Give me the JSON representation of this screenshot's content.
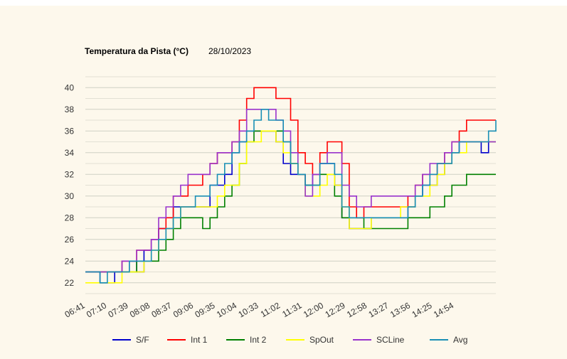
{
  "chart_data": {
    "type": "line",
    "title": "Temperatura da Pista (°C)",
    "subtitle": "28/10/2023",
    "xlabel": "",
    "ylabel": "",
    "ylim": [
      21,
      41
    ],
    "ytick_labels": [
      "22",
      "24",
      "26",
      "28",
      "30",
      "32",
      "34",
      "36",
      "38",
      "40"
    ],
    "x_tick_labels": [
      "06:41",
      "07:10",
      "07:39",
      "08:08",
      "08:37",
      "09:06",
      "09:35",
      "10:04",
      "10:33",
      "11:02",
      "11:31",
      "12:00",
      "12:29",
      "12:58",
      "13:27",
      "13:56",
      "14:25",
      "14:54"
    ],
    "grid": true,
    "legend_position": "bottom",
    "x_minutes": [
      0,
      10,
      20,
      30,
      40,
      50,
      60,
      70,
      80,
      90,
      100,
      110,
      120,
      130,
      140,
      150,
      160,
      170,
      180,
      190,
      200,
      210,
      220,
      230,
      240,
      250,
      260,
      270,
      280,
      290,
      300,
      310,
      320,
      330,
      340,
      350,
      360,
      370,
      380,
      390,
      400,
      410,
      420,
      430,
      440,
      450,
      460,
      470,
      480,
      490,
      500,
      510,
      520,
      530,
      540,
      550,
      560
    ],
    "series": [
      {
        "name": "S/F",
        "color": "#0000cc",
        "values": [
          23,
          23,
          22,
          22,
          23,
          23,
          24,
          23,
          25,
          26,
          27,
          27,
          29,
          29,
          29,
          29,
          29,
          31,
          31,
          32,
          34,
          35,
          36,
          36,
          36,
          36,
          35,
          33,
          32,
          32,
          31,
          32,
          33,
          33,
          31,
          28,
          27,
          27,
          27,
          28,
          28,
          28,
          28,
          28,
          29,
          30,
          31,
          31,
          32,
          33,
          34,
          35,
          35,
          35,
          34,
          35,
          35
        ]
      },
      {
        "name": "Int 1",
        "color": "#ff0000",
        "values": [
          23,
          23,
          23,
          23,
          23,
          24,
          24,
          25,
          25,
          26,
          27,
          28,
          30,
          30,
          31,
          31,
          32,
          33,
          34,
          34,
          35,
          37,
          39,
          40,
          40,
          40,
          39,
          39,
          37,
          34,
          33,
          32,
          34,
          35,
          35,
          33,
          29,
          28,
          29,
          29,
          29,
          29,
          29,
          29,
          30,
          31,
          32,
          32,
          33,
          34,
          35,
          36,
          37,
          37,
          37,
          37,
          37
        ]
      },
      {
        "name": "Int 2",
        "color": "#008000",
        "values": [
          23,
          23,
          23,
          23,
          23,
          23,
          23,
          24,
          24,
          24,
          25,
          26,
          27,
          28,
          28,
          28,
          27,
          28,
          29,
          30,
          31,
          33,
          35,
          36,
          36,
          36,
          36,
          35,
          33,
          32,
          31,
          31,
          32,
          32,
          30,
          28,
          28,
          28,
          27,
          27,
          27,
          27,
          27,
          27,
          28,
          28,
          28,
          29,
          29,
          30,
          31,
          31,
          32,
          32,
          32,
          32,
          32
        ]
      },
      {
        "name": "SpOut",
        "color": "#ffff00",
        "values": [
          22,
          22,
          22,
          22,
          22,
          23,
          23,
          23,
          24,
          25,
          26,
          27,
          28,
          29,
          29,
          29,
          29,
          29,
          30,
          31,
          31,
          33,
          35,
          35,
          36,
          36,
          35,
          34,
          33,
          32,
          30,
          30,
          31,
          32,
          31,
          29,
          27,
          27,
          27,
          28,
          28,
          28,
          28,
          29,
          29,
          30,
          30,
          31,
          32,
          33,
          34,
          34,
          35,
          35,
          35,
          35,
          35
        ]
      },
      {
        "name": "SCLine",
        "color": "#9933cc",
        "values": [
          23,
          23,
          23,
          23,
          23,
          24,
          24,
          25,
          25,
          26,
          28,
          29,
          30,
          31,
          32,
          32,
          32,
          33,
          34,
          34,
          35,
          36,
          38,
          38,
          38,
          38,
          37,
          36,
          34,
          32,
          30,
          32,
          33,
          34,
          34,
          31,
          30,
          29,
          29,
          30,
          30,
          30,
          30,
          30,
          30,
          31,
          32,
          33,
          33,
          34,
          35,
          35,
          35,
          35,
          35,
          35,
          35
        ]
      },
      {
        "name": "Avg",
        "color": "#1a8fb5",
        "values": [
          23,
          23,
          22,
          23,
          23,
          23,
          24,
          24,
          24,
          25,
          26,
          27,
          28,
          29,
          29,
          30,
          30,
          31,
          32,
          33,
          34,
          35,
          36,
          37,
          38,
          37,
          37,
          35,
          33,
          32,
          31,
          31,
          33,
          33,
          32,
          29,
          28,
          28,
          28,
          28,
          28,
          28,
          28,
          28,
          29,
          30,
          31,
          32,
          33,
          33,
          34,
          35,
          35,
          35,
          35,
          36,
          37
        ]
      }
    ]
  }
}
